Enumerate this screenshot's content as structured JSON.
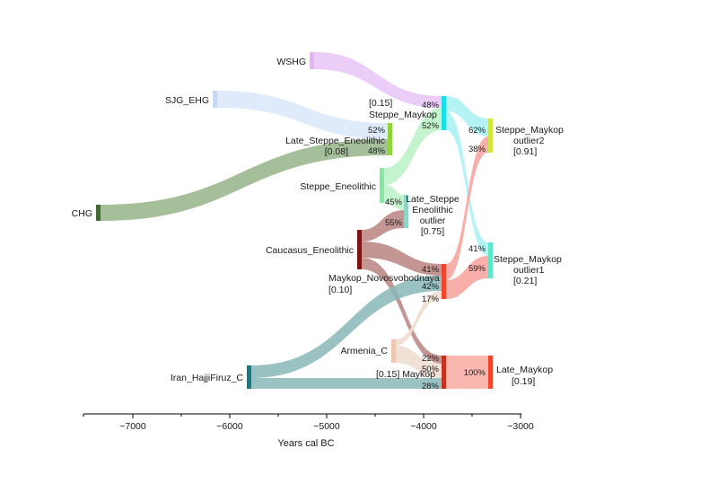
{
  "axis": {
    "title": "Years cal BC",
    "ticks": [
      "−7000",
      "−6000",
      "−5000",
      "−4000",
      "−3000"
    ]
  },
  "nodes": {
    "wshg": {
      "label": "WSHG",
      "color": "#e7b3f4"
    },
    "sjg_ehg": {
      "label": "SJG_EHG",
      "color": "#c3d9f7"
    },
    "chg": {
      "label": "CHG",
      "color": "#3a6f2c"
    },
    "steppe_maykop": {
      "lines": [
        "[0.15]",
        "Steppe_Maykop"
      ],
      "color": "#18dfe9"
    },
    "late_steppe_eneolithic": {
      "lines": [
        "Late_Steppe_Eneolithic",
        "[0.08]"
      ],
      "color": "#8fd43a"
    },
    "steppe_eneolithic": {
      "label": "Steppe_Eneolithic",
      "color": "#86e8a0"
    },
    "late_steppe_eneolithic_outlier": {
      "lines": [
        "Late_Steppe",
        "Eneolithic",
        "outlier",
        "[0.75]"
      ],
      "color": "#8fd6c9"
    },
    "caucasus_eneolithic": {
      "label": "Caucasus_Eneolithic",
      "color": "#7d1414"
    },
    "maykop_novosvobodnaya": {
      "lines": [
        "Maykop_Novosvobodnaya",
        "[0.10]"
      ],
      "color": "#f4432b"
    },
    "armenia_c": {
      "label": "Armenia_C",
      "color": "#f0c8b0"
    },
    "iran_hajjifiruz_c": {
      "label": "Iran_HajjiFiruz_C",
      "color": "#197a82"
    },
    "maykop": {
      "label": "[0.15] Maykop",
      "color": "#c8321f"
    },
    "steppe_maykop_outlier2": {
      "lines": [
        "Steppe_Maykop",
        "outlier2",
        "[0.91]"
      ],
      "color": "#cde83b"
    },
    "steppe_maykop_outlier1": {
      "lines": [
        "Steppe_Maykop",
        "outlier1",
        "[0.21]"
      ],
      "color": "#5ee6c8"
    },
    "late_maykop": {
      "lines": [
        "Late_Maykop",
        "[0.19]"
      ],
      "color": "#f4432b"
    }
  },
  "percentages": {
    "steppe_maykop_in_top": "48%",
    "steppe_maykop_in_bottom": "52%",
    "lse_in_top": "52%",
    "lse_in_bottom": "48%",
    "lseo_in_top": "45%",
    "lseo_in_bottom": "55%",
    "outlier2_in_top": "62%",
    "outlier2_in_bottom": "38%",
    "outlier1_in_top": "41%",
    "outlier1_in_bottom": "59%",
    "mn_in_top": "41%",
    "mn_in_mid": "42%",
    "mn_in_bottom": "17%",
    "maykop_in_top": "22%",
    "maykop_in_mid": "50%",
    "maykop_in_bottom": "28%",
    "late_maykop_in": "100%"
  },
  "flows": [
    {
      "source": "WSHG",
      "target": "Steppe_Maykop",
      "share": "48%",
      "color": "#e7c4f6"
    },
    {
      "source": "SJG_EHG",
      "target": "Late_Steppe_Eneolithic",
      "share": "52%",
      "color": "#dce8fa"
    },
    {
      "source": "CHG",
      "target": "Late_Steppe_Eneolithic",
      "share": "48%",
      "color": "#97b489"
    },
    {
      "source": "Steppe_Eneolithic",
      "target": "Steppe_Maykop",
      "share": "52%",
      "color": "#b8f2c4"
    },
    {
      "source": "Steppe_Eneolithic",
      "target": "Late_Steppe_Eneolithic_outlier",
      "share": "45%",
      "color": "#b8f2c4"
    },
    {
      "source": "Caucasus_Eneolithic",
      "target": "Late_Steppe_Eneolithic_outlier",
      "share": "55%",
      "color": "#b88480"
    },
    {
      "source": "Caucasus_Eneolithic",
      "target": "Maykop_Novosvobodnaya",
      "share": "41%",
      "color": "#b88480"
    },
    {
      "source": "Caucasus_Eneolithic",
      "target": "Maykop",
      "share": "22%",
      "color": "#b88480"
    },
    {
      "source": "Iran_HajjiFiruz_C",
      "target": "Maykop_Novosvobodnaya",
      "share": "42%",
      "color": "#8ab7b9"
    },
    {
      "source": "Iran_HajjiFiruz_C",
      "target": "Maykop",
      "share": "28%",
      "color": "#8ab7b9"
    },
    {
      "source": "Armenia_C",
      "target": "Maykop_Novosvobodnaya",
      "share": "17%",
      "color": "#f0ddd0"
    },
    {
      "source": "Armenia_C",
      "target": "Maykop",
      "share": "50%",
      "color": "#f0ddd0"
    },
    {
      "source": "Steppe_Maykop",
      "target": "Steppe_Maykop_outlier2",
      "share": "62%",
      "color": "#a6f1f4"
    },
    {
      "source": "Steppe_Maykop",
      "target": "Steppe_Maykop_outlier1",
      "share": "41%",
      "color": "#a6f1f4"
    },
    {
      "source": "Maykop_Novosvobodnaya",
      "target": "Steppe_Maykop_outlier2",
      "share": "38%",
      "color": "#f7a19a"
    },
    {
      "source": "Maykop_Novosvobodnaya",
      "target": "Steppe_Maykop_outlier1",
      "share": "59%",
      "color": "#f7a19a"
    },
    {
      "source": "Maykop",
      "target": "Late_Maykop",
      "share": "100%",
      "color": "#f9b0a8"
    }
  ]
}
